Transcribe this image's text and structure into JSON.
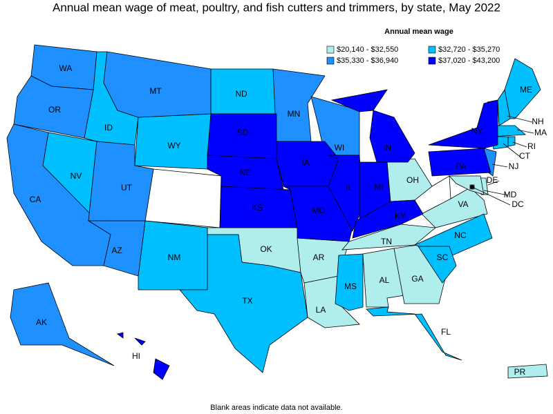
{
  "title": "Annual mean wage of meat, poultry, and fish cutters and trimmers, by state, May 2022",
  "legend": {
    "title": "Annual mean wage",
    "bins": [
      {
        "label": "$20,140 - $32,550",
        "color": "#b0eeee",
        "states": [
          "OK",
          "AR",
          "TN",
          "AL",
          "GA",
          "OH",
          "VA",
          "LA",
          "PR",
          "DE",
          "MD",
          "DC"
        ]
      },
      {
        "label": "$32,720 - $35,270",
        "color": "#00bfff",
        "states": [
          "ND",
          "WY",
          "ID",
          "NV",
          "NM",
          "TX",
          "MS",
          "NC",
          "SC",
          "FL",
          "ME",
          "NH",
          "MA",
          "RI",
          "CT"
        ]
      },
      {
        "label": "$35,330 - $36,940",
        "color": "#1e90ff",
        "states": [
          "WA",
          "OR",
          "CA",
          "MT",
          "UT",
          "AZ",
          "MN",
          "WI",
          "AK",
          "NJ"
        ]
      },
      {
        "label": "$37,020 - $43,200",
        "color": "#0000ff",
        "states": [
          "SD",
          "NE",
          "KS",
          "IA",
          "MO",
          "IL",
          "IN",
          "MI",
          "KY",
          "NY",
          "PA",
          "HI"
        ]
      }
    ]
  },
  "footnote": "Blank areas indicate data not available."
}
